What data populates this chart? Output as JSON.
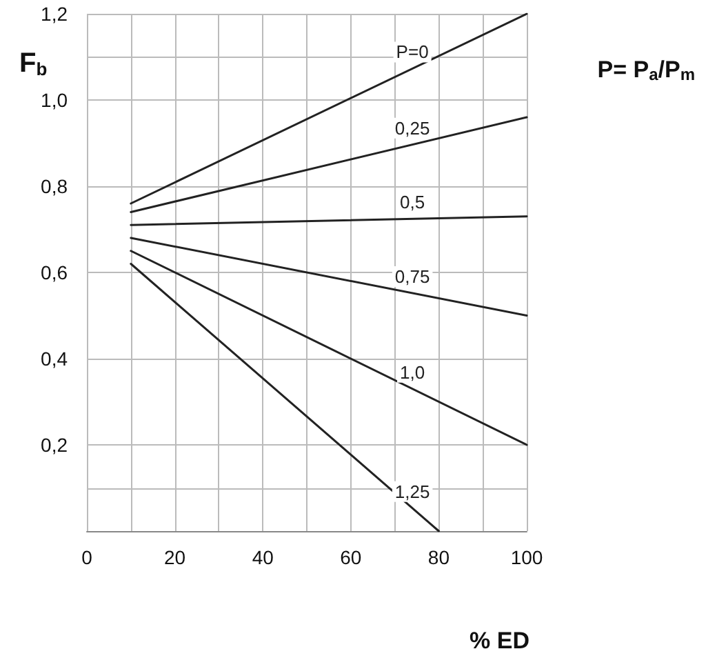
{
  "chart_data": {
    "type": "line",
    "xlabel": "% ED",
    "ylabel": "F$_{b}$",
    "annotations": [
      "P= P$_{a}$/P$_{m}$"
    ],
    "xlim": [
      0,
      100
    ],
    "xticks": [
      0,
      {
        "value": 10,
        "label": null
      },
      20,
      {
        "value": 30,
        "label": null
      },
      40,
      {
        "value": 50,
        "label": null
      },
      60,
      {
        "value": 70,
        "label": null
      },
      80,
      {
        "value": 90,
        "label": null
      },
      100
    ],
    "ylim": [
      0,
      1.2
    ],
    "yticks": [
      {
        "value": 0,
        "label": null
      },
      {
        "value": 0.1,
        "label": null
      },
      {
        "value": 0.2,
        "label": "0,2"
      },
      {
        "value": 0.4,
        "label": "0,4"
      },
      {
        "value": 0.6,
        "label": "0,6"
      },
      {
        "value": 0.8,
        "label": "0,8"
      },
      {
        "value": 1.0,
        "label": "1,0"
      },
      {
        "value": 1.1,
        "label": null
      },
      {
        "value": 1.2,
        "label": "1,2"
      }
    ],
    "grid": true,
    "marker": "none",
    "line_style": "solid",
    "series": [
      {
        "name": "P=0",
        "color": "#222222",
        "x": [
          10,
          100
        ],
        "values": [
          0.76,
          1.2
        ]
      },
      {
        "name": "0,25",
        "color": "#222222",
        "x": [
          10,
          100
        ],
        "values": [
          0.74,
          0.96
        ]
      },
      {
        "name": "0,5",
        "color": "#222222",
        "x": [
          10,
          100
        ],
        "values": [
          0.71,
          0.73
        ]
      },
      {
        "name": "0,75",
        "color": "#222222",
        "x": [
          10,
          100
        ],
        "values": [
          0.68,
          0.5
        ]
      },
      {
        "name": "1,0",
        "color": "#222222",
        "x": [
          10,
          100
        ],
        "values": [
          0.65,
          0.2
        ]
      },
      {
        "name": "1,25",
        "color": "#222222",
        "x": [
          10,
          80
        ],
        "values": [
          0.62,
          0
        ]
      }
    ]
  }
}
